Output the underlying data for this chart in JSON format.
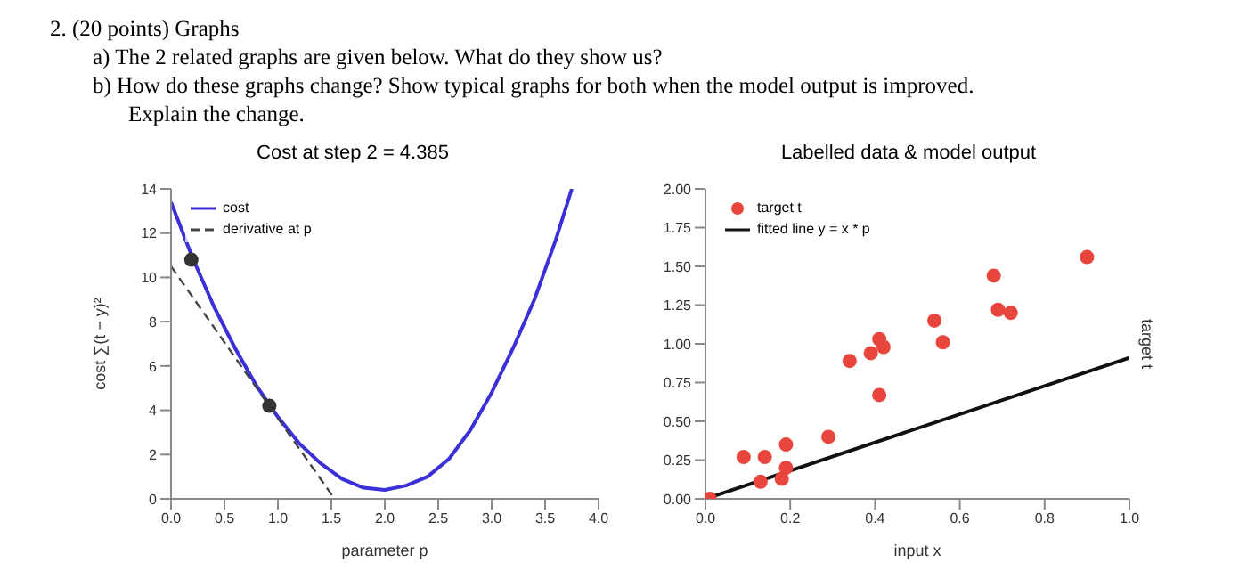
{
  "chart_data": [
    {
      "type": "line",
      "title": "Cost at step 2 = 4.385",
      "xlabel": "parameter p",
      "ylabel": "cost ∑(t − y)²",
      "annotations": [
        "2. (20 points) Graphs",
        "a) The 2 related graphs are given below. What do they show us?",
        "b) How do these graphs change? Show typical graphs for both when the model output is improved.",
        "Explain the change."
      ],
      "xlim": [
        0,
        4
      ],
      "xticks": [
        {
          "value": 0,
          "label": "0.0"
        },
        {
          "value": 0.5,
          "label": "0.5"
        },
        {
          "value": 1,
          "label": "1.0"
        },
        {
          "value": 1.5,
          "label": "1.5"
        },
        {
          "value": 2,
          "label": "2.0"
        },
        {
          "value": 2.5,
          "label": "2.5"
        },
        {
          "value": 3,
          "label": "3.0"
        },
        {
          "value": 3.5,
          "label": "3.5"
        },
        {
          "value": 4,
          "label": "4.0"
        }
      ],
      "ylim": [
        0,
        14
      ],
      "yticks": [
        0,
        2,
        4,
        6,
        8,
        10,
        12,
        14
      ],
      "legend": "top left",
      "grid": false,
      "series": [
        {
          "name": "cost",
          "color": "#3b2fd8",
          "x": [
            0,
            0.2,
            0.4,
            0.6,
            0.8,
            1.0,
            1.2,
            1.4,
            1.6,
            1.8,
            2.0,
            2.2,
            2.4,
            2.6,
            2.8,
            3.0,
            3.2,
            3.4,
            3.6,
            3.75
          ],
          "values": [
            13.4,
            10.9,
            8.7,
            6.8,
            5.1,
            3.7,
            2.5,
            1.6,
            0.9,
            0.5,
            0.4,
            0.6,
            1.0,
            1.8,
            3.1,
            4.8,
            6.8,
            9.0,
            11.7,
            14
          ]
        },
        {
          "name": "derivative at p",
          "color": "#444444",
          "line_style": "dashed",
          "x": [
            0,
            1.53
          ],
          "values": [
            10.5,
            0
          ]
        },
        {
          "type": "scatter",
          "color": "#333333",
          "marker": "circle",
          "x": [
            0.19,
            0.92
          ],
          "values": [
            10.8,
            4.2
          ]
        }
      ]
    },
    {
      "type": "scatter",
      "title": "Labelled data & model output",
      "xlabel": "input x",
      "y2label": "target t",
      "xlim": [
        0,
        1
      ],
      "xticks": [
        {
          "value": 0,
          "label": "0.0"
        },
        {
          "value": 0.2,
          "label": "0.2"
        },
        {
          "value": 0.4,
          "label": "0.4"
        },
        {
          "value": 0.6,
          "label": "0.6"
        },
        {
          "value": 0.8,
          "label": "0.8"
        },
        {
          "value": 1,
          "label": "1.0"
        }
      ],
      "ylim": [
        0,
        2
      ],
      "yticks": [
        {
          "value": 0,
          "label": "0.00"
        },
        {
          "value": 0.25,
          "label": "0.25"
        },
        {
          "value": 0.5,
          "label": "0.50"
        },
        {
          "value": 0.75,
          "label": "0.75"
        },
        {
          "value": 1,
          "label": "1.00"
        },
        {
          "value": 1.25,
          "label": "1.25"
        },
        {
          "value": 1.5,
          "label": "1.50"
        },
        {
          "value": 1.75,
          "label": "1.75"
        },
        {
          "value": 2,
          "label": "2.00"
        }
      ],
      "legend": "top left",
      "grid": false,
      "series": [
        {
          "name": "target t",
          "color": "#e8453c",
          "marker": "circle",
          "x": [
            0.01,
            0.09,
            0.14,
            0.19,
            0.13,
            0.18,
            0.19,
            0.29,
            0.34,
            0.39,
            0.41,
            0.42,
            0.41,
            0.54,
            0.56,
            0.68,
            0.69,
            0.72,
            0.9
          ],
          "values": [
            0.0,
            0.27,
            0.27,
            0.35,
            0.11,
            0.13,
            0.2,
            0.4,
            0.89,
            0.94,
            1.03,
            0.98,
            0.67,
            1.15,
            1.01,
            1.44,
            1.22,
            1.2,
            1.56
          ]
        },
        {
          "type": "line",
          "name": "fitted line y = x * p",
          "color": "#111111",
          "x": [
            0,
            1
          ],
          "values": [
            0,
            0.91
          ]
        }
      ]
    }
  ]
}
